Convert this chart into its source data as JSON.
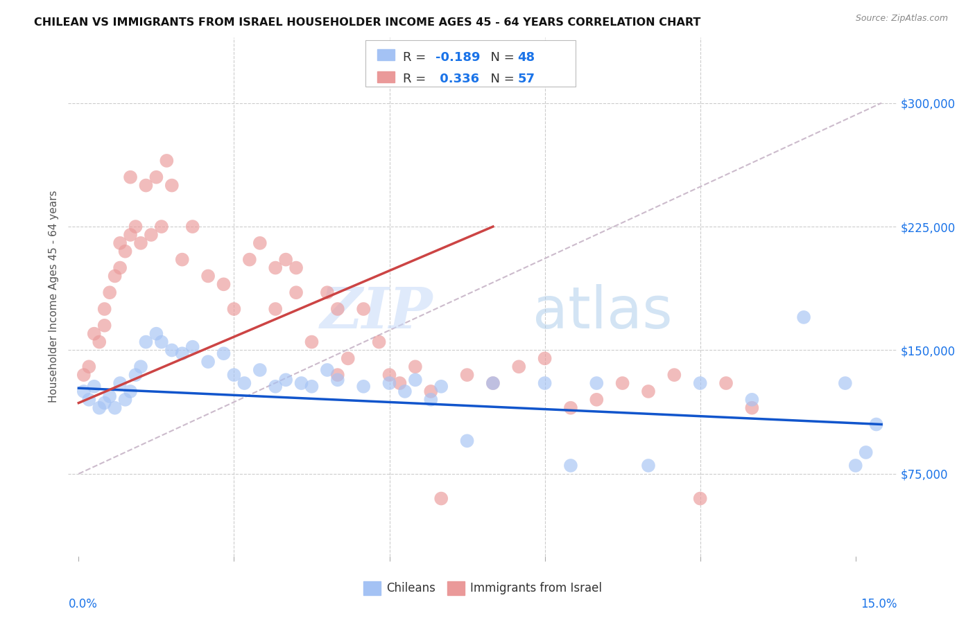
{
  "title": "CHILEAN VS IMMIGRANTS FROM ISRAEL HOUSEHOLDER INCOME AGES 45 - 64 YEARS CORRELATION CHART",
  "source": "Source: ZipAtlas.com",
  "ylabel": "Householder Income Ages 45 - 64 years",
  "y_tick_values": [
    75000,
    150000,
    225000,
    300000
  ],
  "y_tick_labels": [
    "$75,000",
    "$150,000",
    "$225,000",
    "$300,000"
  ],
  "ylim": [
    25000,
    340000
  ],
  "xlim": [
    -0.002,
    0.158
  ],
  "blue_color": "#a4c2f4",
  "pink_color": "#ea9999",
  "blue_line_color": "#1155cc",
  "pink_line_color": "#cc4444",
  "dashed_line_color": "#ccbbcc",
  "watermark_zip_color": "#c9daf8",
  "watermark_atlas_color": "#a4c2f4",
  "chileans_x": [
    0.001,
    0.002,
    0.003,
    0.004,
    0.005,
    0.006,
    0.007,
    0.008,
    0.009,
    0.01,
    0.011,
    0.012,
    0.013,
    0.015,
    0.016,
    0.018,
    0.02,
    0.022,
    0.025,
    0.028,
    0.03,
    0.032,
    0.035,
    0.038,
    0.04,
    0.043,
    0.045,
    0.048,
    0.05,
    0.055,
    0.06,
    0.063,
    0.065,
    0.068,
    0.07,
    0.075,
    0.08,
    0.09,
    0.095,
    0.1,
    0.11,
    0.12,
    0.13,
    0.14,
    0.148,
    0.15,
    0.152,
    0.154
  ],
  "chileans_y": [
    125000,
    120000,
    128000,
    115000,
    118000,
    122000,
    115000,
    130000,
    120000,
    125000,
    135000,
    140000,
    155000,
    160000,
    155000,
    150000,
    148000,
    152000,
    143000,
    148000,
    135000,
    130000,
    138000,
    128000,
    132000,
    130000,
    128000,
    138000,
    132000,
    128000,
    130000,
    125000,
    132000,
    120000,
    128000,
    95000,
    130000,
    130000,
    80000,
    130000,
    80000,
    130000,
    120000,
    170000,
    130000,
    80000,
    88000,
    105000
  ],
  "israel_x": [
    0.001,
    0.002,
    0.003,
    0.004,
    0.005,
    0.005,
    0.006,
    0.007,
    0.008,
    0.008,
    0.009,
    0.01,
    0.01,
    0.011,
    0.012,
    0.013,
    0.014,
    0.015,
    0.016,
    0.017,
    0.018,
    0.02,
    0.022,
    0.025,
    0.028,
    0.03,
    0.033,
    0.035,
    0.038,
    0.04,
    0.042,
    0.045,
    0.048,
    0.05,
    0.052,
    0.055,
    0.058,
    0.06,
    0.062,
    0.065,
    0.068,
    0.07,
    0.075,
    0.08,
    0.085,
    0.09,
    0.095,
    0.1,
    0.105,
    0.11,
    0.115,
    0.12,
    0.125,
    0.13,
    0.05,
    0.038,
    0.042
  ],
  "israel_y": [
    135000,
    140000,
    160000,
    155000,
    175000,
    165000,
    185000,
    195000,
    200000,
    215000,
    210000,
    220000,
    255000,
    225000,
    215000,
    250000,
    220000,
    255000,
    225000,
    265000,
    250000,
    205000,
    225000,
    195000,
    190000,
    175000,
    205000,
    215000,
    200000,
    205000,
    185000,
    155000,
    185000,
    135000,
    145000,
    175000,
    155000,
    135000,
    130000,
    140000,
    125000,
    60000,
    135000,
    130000,
    140000,
    145000,
    115000,
    120000,
    130000,
    125000,
    135000,
    60000,
    130000,
    115000,
    175000,
    175000,
    200000
  ]
}
